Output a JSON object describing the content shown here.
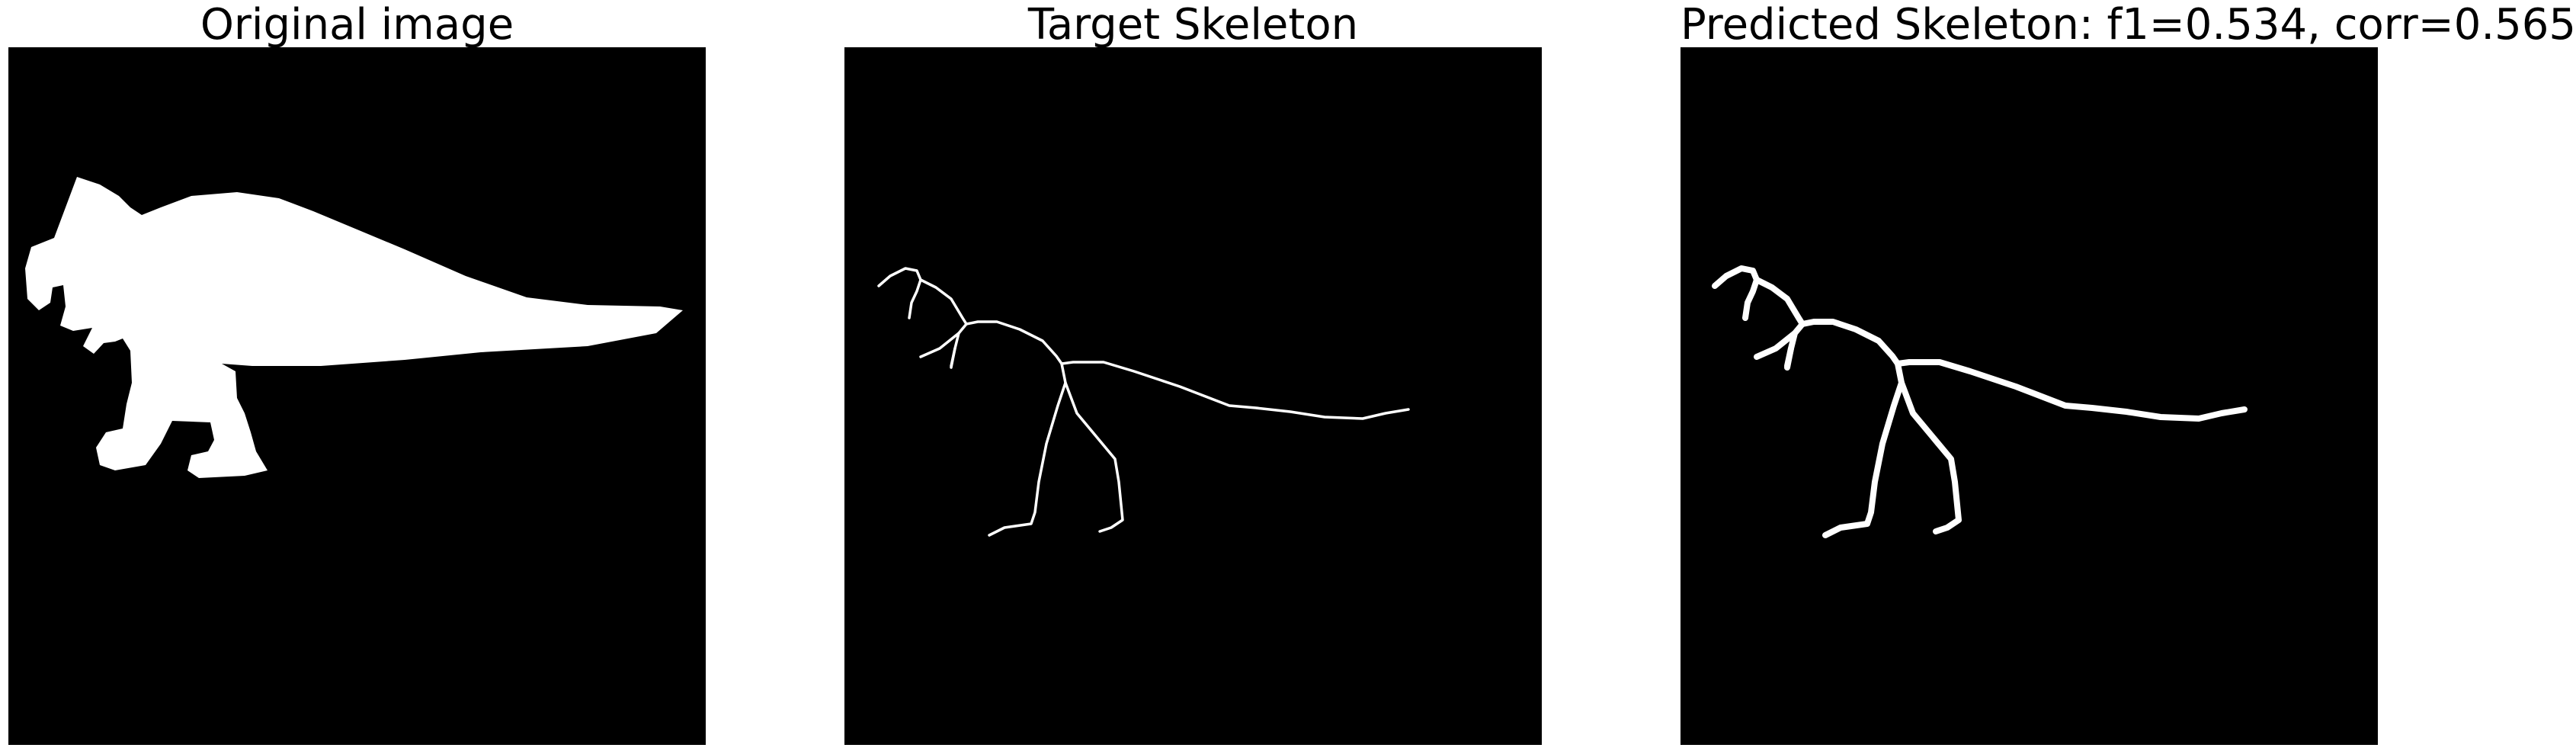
{
  "figure": {
    "background": "#ffffff",
    "panels": [
      {
        "id": "original",
        "title": "Original image",
        "content": "silhouette"
      },
      {
        "id": "target",
        "title": "Target Skeleton",
        "content": "skeleton-thin"
      },
      {
        "id": "predicted",
        "title": "Predicted Skeleton: f1=0.534, corr=0.565",
        "content": "skeleton-thick"
      }
    ]
  },
  "colors": {
    "canvas": "#000000",
    "foreground": "#ffffff",
    "title": "#000000"
  }
}
